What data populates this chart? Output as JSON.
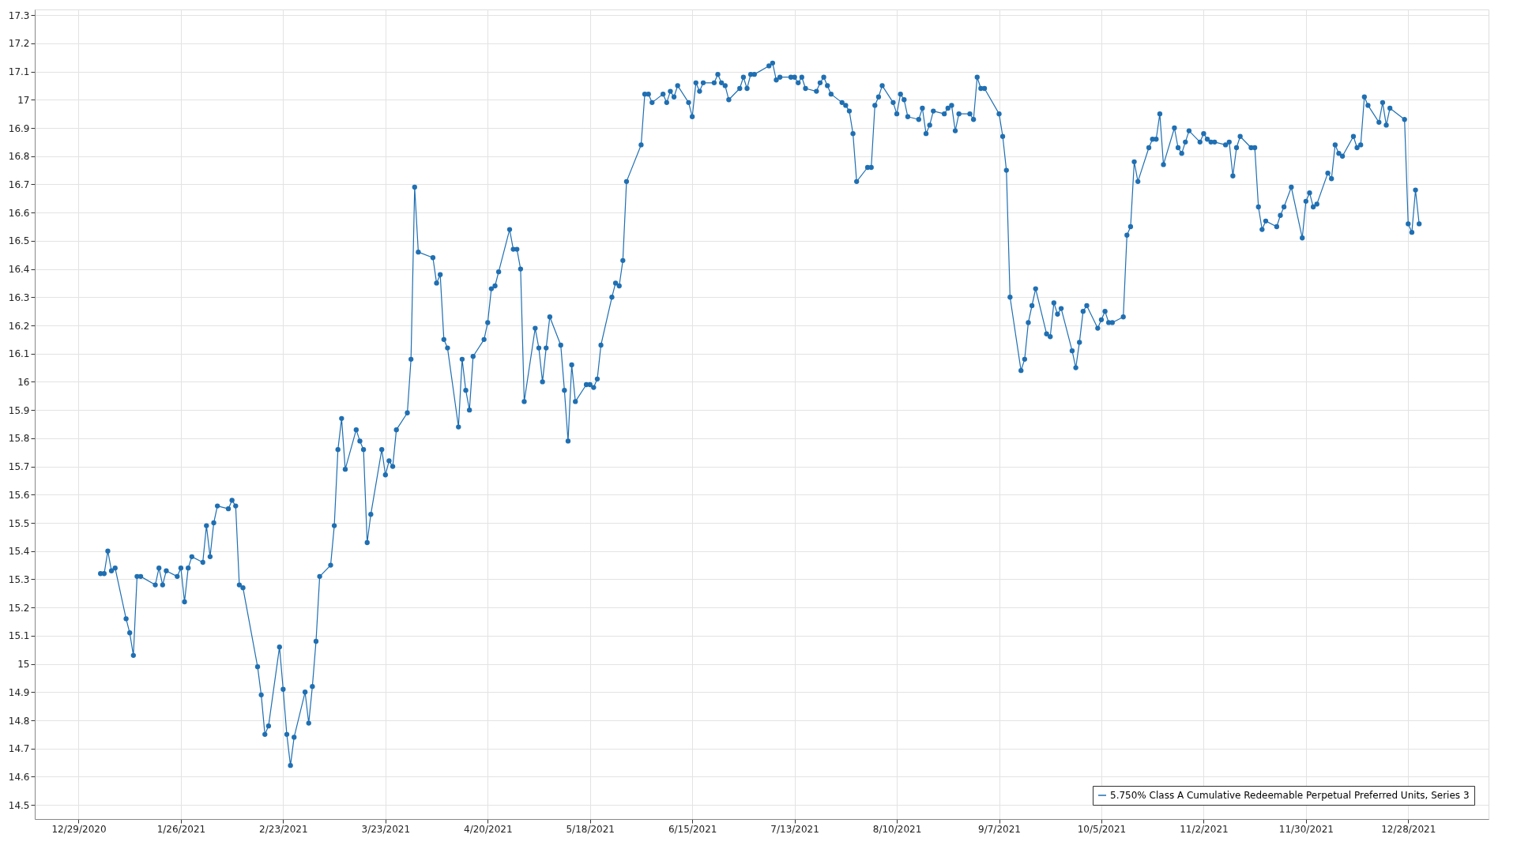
{
  "chart_data": {
    "type": "line",
    "legend": "bottom right",
    "grid": true,
    "marker": "circle",
    "line_style": "solid",
    "xlim": [
      "2020-12-17",
      "2022-01-19"
    ],
    "ylim": [
      14.45,
      17.32
    ],
    "xticks": [
      {
        "value": "2020-12-29",
        "label": "12/29/2020"
      },
      {
        "value": "2021-01-26",
        "label": "1/26/2021"
      },
      {
        "value": "2021-02-23",
        "label": "2/23/2021"
      },
      {
        "value": "2021-03-23",
        "label": "3/23/2021"
      },
      {
        "value": "2021-04-20",
        "label": "4/20/2021"
      },
      {
        "value": "2021-05-18",
        "label": "5/18/2021"
      },
      {
        "value": "2021-06-15",
        "label": "6/15/2021"
      },
      {
        "value": "2021-07-13",
        "label": "7/13/2021"
      },
      {
        "value": "2021-08-10",
        "label": "8/10/2021"
      },
      {
        "value": "2021-09-07",
        "label": "9/7/2021"
      },
      {
        "value": "2021-10-05",
        "label": "10/5/2021"
      },
      {
        "value": "2021-11-02",
        "label": "11/2/2021"
      },
      {
        "value": "2021-11-30",
        "label": "11/30/2021"
      },
      {
        "value": "2021-12-28",
        "label": "12/28/2021"
      }
    ],
    "yticks": [
      14.5,
      14.6,
      14.7,
      14.8,
      14.9,
      15,
      15.1,
      15.2,
      15.3,
      15.4,
      15.5,
      15.6,
      15.7,
      15.8,
      15.9,
      16,
      16.1,
      16.2,
      16.3,
      16.4,
      16.5,
      16.6,
      16.7,
      16.8,
      16.9,
      17,
      17.1,
      17.2,
      17.3
    ],
    "series": [
      {
        "name": "5.750% Class A Cumulative Redeemable Perpetual Preferred Units, Series 3",
        "color": "#1f6fb2",
        "x": [
          "2021-01-04",
          "2021-01-05",
          "2021-01-06",
          "2021-01-07",
          "2021-01-08",
          "2021-01-11",
          "2021-01-12",
          "2021-01-13",
          "2021-01-14",
          "2021-01-15",
          "2021-01-19",
          "2021-01-20",
          "2021-01-21",
          "2021-01-22",
          "2021-01-25",
          "2021-01-26",
          "2021-01-27",
          "2021-01-28",
          "2021-01-29",
          "2021-02-01",
          "2021-02-02",
          "2021-02-03",
          "2021-02-04",
          "2021-02-05",
          "2021-02-08",
          "2021-02-09",
          "2021-02-10",
          "2021-02-11",
          "2021-02-12",
          "2021-02-16",
          "2021-02-17",
          "2021-02-18",
          "2021-02-19",
          "2021-02-22",
          "2021-02-23",
          "2021-02-24",
          "2021-02-25",
          "2021-02-26",
          "2021-03-01",
          "2021-03-02",
          "2021-03-03",
          "2021-03-04",
          "2021-03-05",
          "2021-03-08",
          "2021-03-09",
          "2021-03-10",
          "2021-03-11",
          "2021-03-12",
          "2021-03-15",
          "2021-03-16",
          "2021-03-17",
          "2021-03-18",
          "2021-03-19",
          "2021-03-22",
          "2021-03-23",
          "2021-03-24",
          "2021-03-25",
          "2021-03-26",
          "2021-03-29",
          "2021-03-30",
          "2021-03-31",
          "2021-04-01",
          "2021-04-05",
          "2021-04-06",
          "2021-04-07",
          "2021-04-08",
          "2021-04-09",
          "2021-04-12",
          "2021-04-13",
          "2021-04-14",
          "2021-04-15",
          "2021-04-16",
          "2021-04-19",
          "2021-04-20",
          "2021-04-21",
          "2021-04-22",
          "2021-04-23",
          "2021-04-26",
          "2021-04-27",
          "2021-04-28",
          "2021-04-29",
          "2021-04-30",
          "2021-05-03",
          "2021-05-04",
          "2021-05-05",
          "2021-05-06",
          "2021-05-07",
          "2021-05-10",
          "2021-05-11",
          "2021-05-12",
          "2021-05-13",
          "2021-05-14",
          "2021-05-17",
          "2021-05-18",
          "2021-05-19",
          "2021-05-20",
          "2021-05-21",
          "2021-05-24",
          "2021-05-25",
          "2021-05-26",
          "2021-05-27",
          "2021-05-28",
          "2021-06-01",
          "2021-06-02",
          "2021-06-03",
          "2021-06-04",
          "2021-06-07",
          "2021-06-08",
          "2021-06-09",
          "2021-06-10",
          "2021-06-11",
          "2021-06-14",
          "2021-06-15",
          "2021-06-16",
          "2021-06-17",
          "2021-06-18",
          "2021-06-21",
          "2021-06-22",
          "2021-06-23",
          "2021-06-24",
          "2021-06-25",
          "2021-06-28",
          "2021-06-29",
          "2021-06-30",
          "2021-07-01",
          "2021-07-02",
          "2021-07-06",
          "2021-07-07",
          "2021-07-08",
          "2021-07-09",
          "2021-07-12",
          "2021-07-13",
          "2021-07-14",
          "2021-07-15",
          "2021-07-16",
          "2021-07-19",
          "2021-07-20",
          "2021-07-21",
          "2021-07-22",
          "2021-07-23",
          "2021-07-26",
          "2021-07-27",
          "2021-07-28",
          "2021-07-29",
          "2021-07-30",
          "2021-08-02",
          "2021-08-03",
          "2021-08-04",
          "2021-08-05",
          "2021-08-06",
          "2021-08-09",
          "2021-08-10",
          "2021-08-11",
          "2021-08-12",
          "2021-08-13",
          "2021-08-16",
          "2021-08-17",
          "2021-08-18",
          "2021-08-19",
          "2021-08-20",
          "2021-08-23",
          "2021-08-24",
          "2021-08-25",
          "2021-08-26",
          "2021-08-27",
          "2021-08-30",
          "2021-08-31",
          "2021-09-01",
          "2021-09-02",
          "2021-09-03",
          "2021-09-07",
          "2021-09-08",
          "2021-09-09",
          "2021-09-10",
          "2021-09-13",
          "2021-09-14",
          "2021-09-15",
          "2021-09-16",
          "2021-09-17",
          "2021-09-20",
          "2021-09-21",
          "2021-09-22",
          "2021-09-23",
          "2021-09-24",
          "2021-09-27",
          "2021-09-28",
          "2021-09-29",
          "2021-09-30",
          "2021-10-01",
          "2021-10-04",
          "2021-10-05",
          "2021-10-06",
          "2021-10-07",
          "2021-10-08",
          "2021-10-11",
          "2021-10-12",
          "2021-10-13",
          "2021-10-14",
          "2021-10-15",
          "2021-10-18",
          "2021-10-19",
          "2021-10-20",
          "2021-10-21",
          "2021-10-22",
          "2021-10-25",
          "2021-10-26",
          "2021-10-27",
          "2021-10-28",
          "2021-10-29",
          "2021-11-01",
          "2021-11-02",
          "2021-11-03",
          "2021-11-04",
          "2021-11-05",
          "2021-11-08",
          "2021-11-09",
          "2021-11-10",
          "2021-11-11",
          "2021-11-12",
          "2021-11-15",
          "2021-11-16",
          "2021-11-17",
          "2021-11-18",
          "2021-11-19",
          "2021-11-22",
          "2021-11-23",
          "2021-11-24",
          "2021-11-26",
          "2021-11-29",
          "2021-11-30",
          "2021-12-01",
          "2021-12-02",
          "2021-12-03",
          "2021-12-06",
          "2021-12-07",
          "2021-12-08",
          "2021-12-09",
          "2021-12-10",
          "2021-12-13",
          "2021-12-14",
          "2021-12-15",
          "2021-12-16",
          "2021-12-17",
          "2021-12-20",
          "2021-12-21",
          "2021-12-22",
          "2021-12-23",
          "2021-12-27",
          "2021-12-28",
          "2021-12-29",
          "2021-12-30",
          "2021-12-31"
        ],
        "values": [
          15.32,
          15.32,
          15.4,
          15.33,
          15.34,
          15.16,
          15.11,
          15.03,
          15.31,
          15.31,
          15.28,
          15.34,
          15.28,
          15.33,
          15.31,
          15.34,
          15.22,
          15.34,
          15.38,
          15.36,
          15.49,
          15.38,
          15.5,
          15.56,
          15.55,
          15.58,
          15.56,
          15.28,
          15.27,
          14.99,
          14.89,
          14.75,
          14.78,
          15.06,
          14.91,
          14.75,
          14.64,
          14.74,
          14.9,
          14.79,
          14.92,
          15.08,
          15.31,
          15.35,
          15.49,
          15.76,
          15.87,
          15.69,
          15.83,
          15.79,
          15.76,
          15.43,
          15.53,
          15.76,
          15.67,
          15.72,
          15.7,
          15.83,
          15.89,
          16.08,
          16.69,
          16.46,
          16.44,
          16.35,
          16.38,
          16.15,
          16.12,
          15.84,
          16.08,
          15.97,
          15.9,
          16.09,
          16.15,
          16.21,
          16.33,
          16.34,
          16.39,
          16.54,
          16.47,
          16.47,
          16.4,
          15.93,
          16.19,
          16.12,
          16.0,
          16.12,
          16.23,
          16.13,
          15.97,
          15.79,
          16.06,
          15.93,
          15.99,
          15.99,
          15.98,
          16.01,
          16.13,
          16.3,
          16.35,
          16.34,
          16.43,
          16.71,
          16.84,
          17.02,
          17.02,
          16.99,
          17.02,
          16.99,
          17.03,
          17.01,
          17.05,
          16.99,
          16.94,
          17.06,
          17.03,
          17.06,
          17.06,
          17.09,
          17.06,
          17.05,
          17.0,
          17.04,
          17.08,
          17.04,
          17.09,
          17.09,
          17.12,
          17.13,
          17.07,
          17.08,
          17.08,
          17.08,
          17.06,
          17.08,
          17.04,
          17.03,
          17.06,
          17.08,
          17.05,
          17.02,
          16.99,
          16.98,
          16.96,
          16.88,
          16.71,
          16.76,
          16.76,
          16.98,
          17.01,
          17.05,
          16.99,
          16.95,
          17.02,
          17.0,
          16.94,
          16.93,
          16.97,
          16.88,
          16.91,
          16.96,
          16.95,
          16.97,
          16.98,
          16.89,
          16.95,
          16.95,
          16.93,
          17.08,
          17.04,
          17.04,
          16.95,
          16.87,
          16.75,
          16.3,
          16.04,
          16.08,
          16.21,
          16.27,
          16.33,
          16.17,
          16.16,
          16.28,
          16.24,
          16.26,
          16.11,
          16.05,
          16.14,
          16.25,
          16.27,
          16.19,
          16.22,
          16.25,
          16.21,
          16.21,
          16.23,
          16.52,
          16.55,
          16.78,
          16.71,
          16.83,
          16.86,
          16.86,
          16.95,
          16.77,
          16.9,
          16.83,
          16.81,
          16.85,
          16.89,
          16.85,
          16.88,
          16.86,
          16.85,
          16.85,
          16.84,
          16.85,
          16.73,
          16.83,
          16.87,
          16.83,
          16.83,
          16.62,
          16.54,
          16.57,
          16.55,
          16.59,
          16.62,
          16.69,
          16.51,
          16.64,
          16.67,
          16.62,
          16.63,
          16.74,
          16.72,
          16.84,
          16.81,
          16.8,
          16.87,
          16.83,
          16.84,
          17.01,
          16.98,
          16.92,
          16.99,
          16.91,
          16.97,
          16.93,
          16.56,
          16.53,
          16.68,
          16.56
        ]
      }
    ]
  }
}
